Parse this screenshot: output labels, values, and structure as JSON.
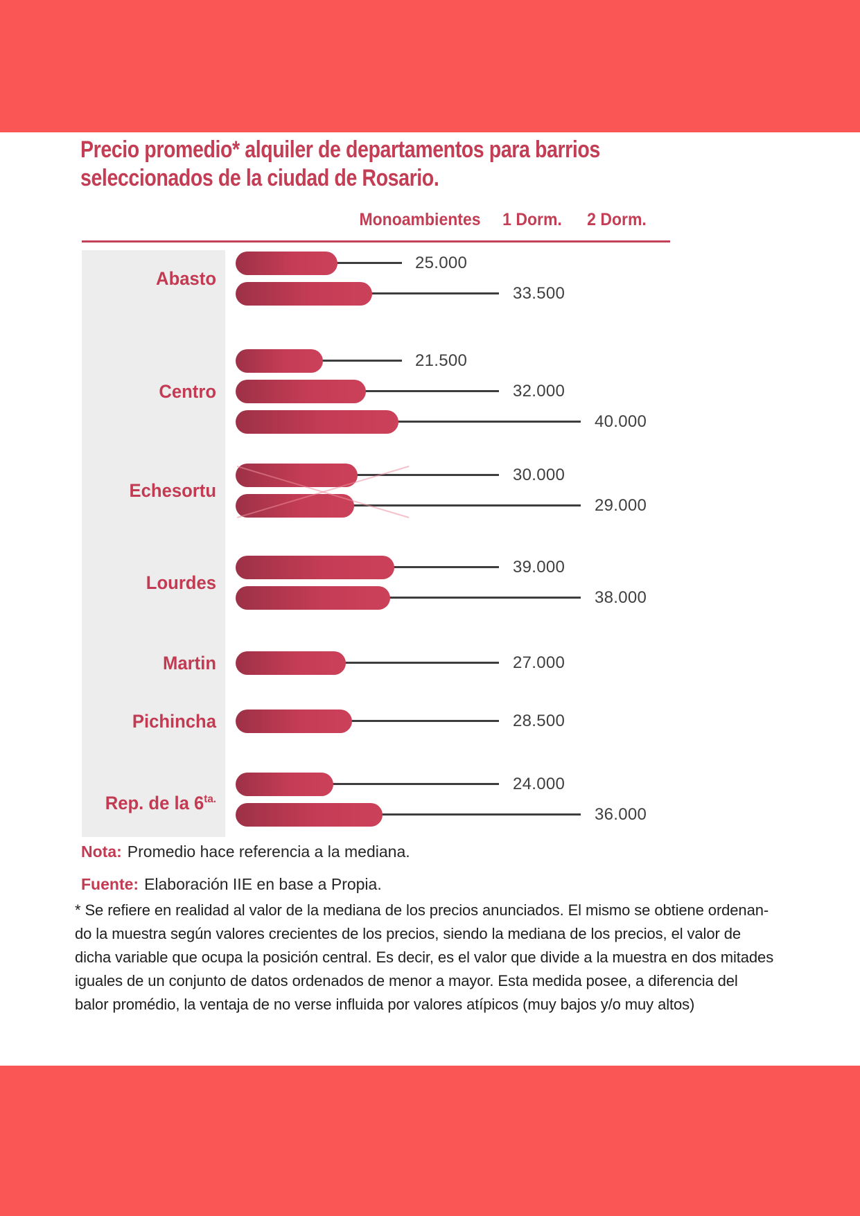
{
  "page": {
    "title_lines": [
      "Precio promedio* alquiler de departamentos para barrios",
      "seleccionados de la ciudad de Rosario."
    ]
  },
  "notes": {
    "note_label": "Nota:",
    "note_text": "Promedio hace referencia a la mediana.",
    "source_label": "Fuente:",
    "source_text": "Elaboración IIE en base a Propia.",
    "footnote_lines": [
      "* Se refiere en realidad al valor de la mediana de los precios anunciados. El mismo se obtiene ordenan-",
      "do la muestra según valores crecientes de los precios, siendo la mediana de los precios, el valor de",
      "dicha variable que ocupa la posición central. Es decir, es el valor que divide a la muestra en dos mitades",
      "iguales de un conjunto de datos ordenados de menor a mayor. Esta medida posee, a diferencia del",
      "balor promédio, la ventaja de no verse influida por valores atípicos (muy bajos y/o muy altos)"
    ]
  },
  "colors": {
    "band_coral": "#fb5656",
    "accent_crimson": "#c33e55",
    "bar_gradient_start": "#9d3147",
    "bar_gradient_end": "#cb4159",
    "panel_gray": "#ededed",
    "leader_line": "#3d3d3d",
    "value_text": "#3f3f3f",
    "body_text": "#1e1e1e"
  },
  "chart_data": {
    "type": "bar",
    "orientation": "horizontal",
    "title": "Precio promedio* alquiler de departamentos para barrios seleccionados de la ciudad de Rosario.",
    "legend": [
      "Monoambientes",
      "1 Dorm.",
      "2 Dorm."
    ],
    "legend_position": "top",
    "value_format": "thousands separated by dot",
    "xlim": [
      0,
      42000
    ],
    "groups": [
      {
        "name": "Abasto",
        "bars": [
          {
            "category": "Monoambientes",
            "value": 25000,
            "label": "25.000"
          },
          {
            "category": "1 Dorm.",
            "value": 33500,
            "label": "33.500"
          }
        ]
      },
      {
        "name": "Centro",
        "bars": [
          {
            "category": "Monoambientes",
            "value": 21500,
            "label": "21.500"
          },
          {
            "category": "1 Dorm.",
            "value": 32000,
            "label": "32.000"
          },
          {
            "category": "2 Dorm.",
            "value": 40000,
            "label": "40.000"
          }
        ]
      },
      {
        "name": "Echesortu",
        "bars": [
          {
            "category": "1 Dorm.",
            "value": 30000,
            "label": "30.000"
          },
          {
            "category": "2 Dorm.",
            "value": 29000,
            "label": "29.000"
          }
        ]
      },
      {
        "name": "Lourdes",
        "bars": [
          {
            "category": "1 Dorm.",
            "value": 39000,
            "label": "39.000"
          },
          {
            "category": "2 Dorm.",
            "value": 38000,
            "label": "38.000"
          }
        ]
      },
      {
        "name": "Martin",
        "bars": [
          {
            "category": "1 Dorm.",
            "value": 27000,
            "label": "27.000"
          }
        ]
      },
      {
        "name": "Pichincha",
        "bars": [
          {
            "category": "1 Dorm.",
            "value": 28500,
            "label": "28.500"
          }
        ]
      },
      {
        "name": "Rep. de la 6",
        "name_sup": "ta.",
        "bars": [
          {
            "category": "1 Dorm.",
            "value": 24000,
            "label": "24.000"
          },
          {
            "category": "2 Dorm.",
            "value": 36000,
            "label": "36.000"
          }
        ]
      }
    ]
  }
}
